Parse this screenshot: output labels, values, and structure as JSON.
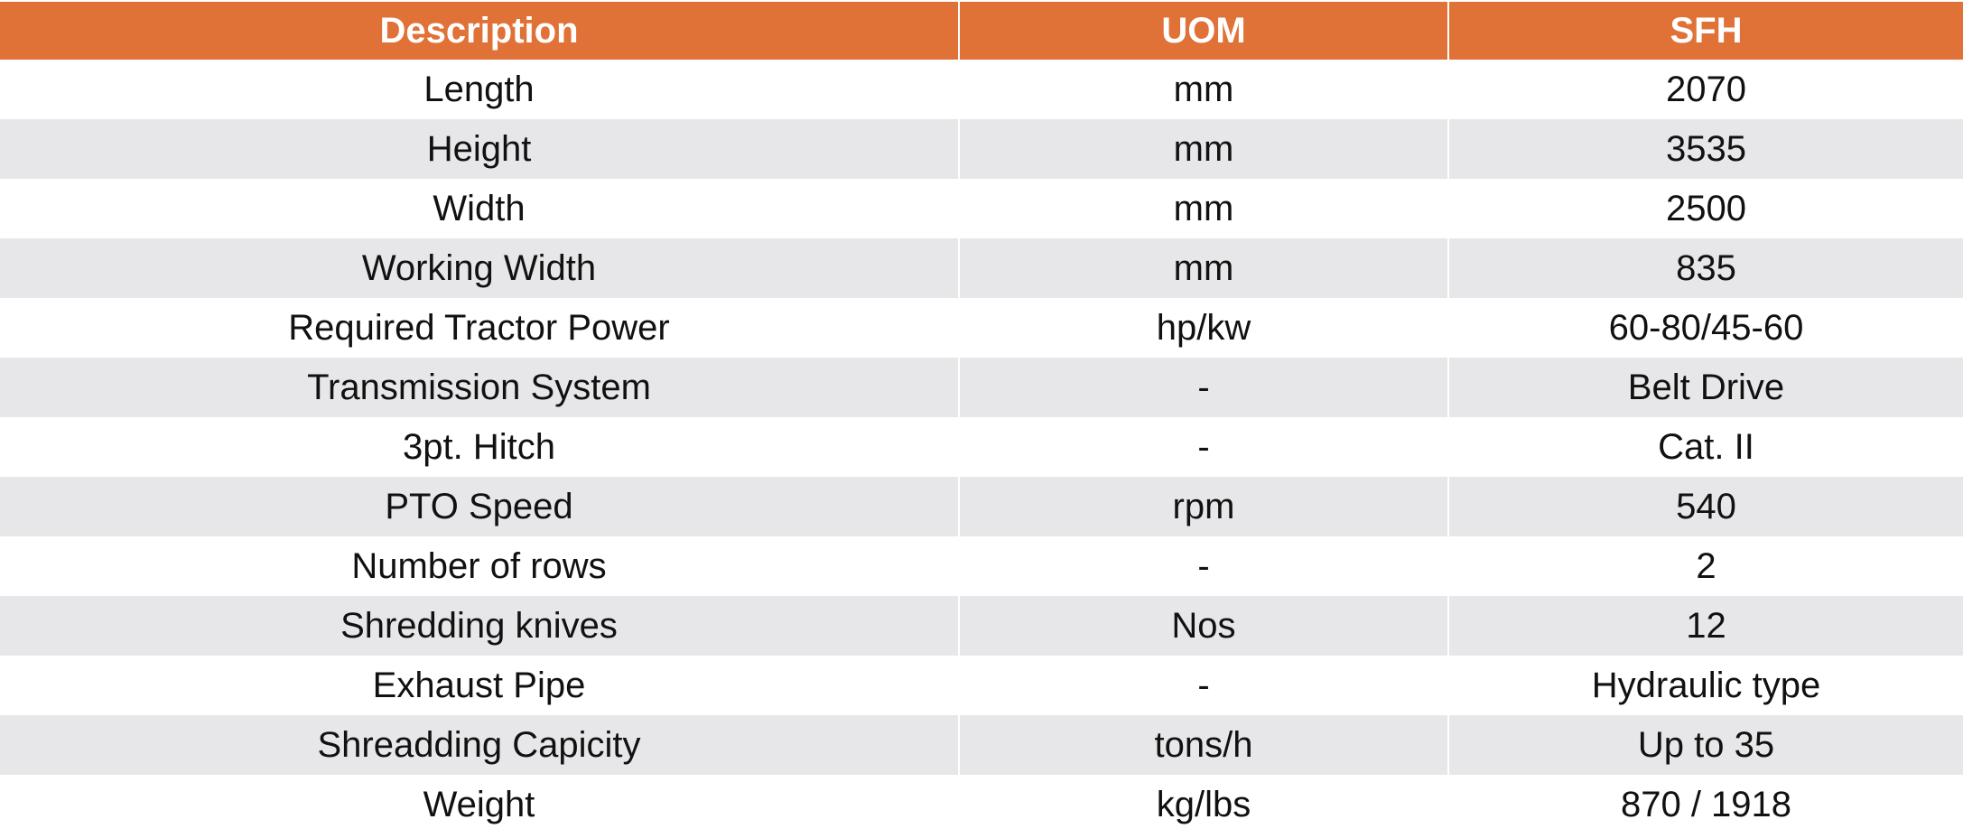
{
  "colors": {
    "header": "#E07238",
    "stripe": "#E7E7E9"
  },
  "headers": [
    "Description",
    "UOM",
    "SFH"
  ],
  "rows": [
    [
      "Length",
      "mm",
      "2070"
    ],
    [
      "Height",
      "mm",
      "3535"
    ],
    [
      "Width",
      "mm",
      "2500"
    ],
    [
      "Working Width",
      "mm",
      "835"
    ],
    [
      "Required Tractor Power",
      "hp/kw",
      "60-80/45-60"
    ],
    [
      "Transmission System",
      "-",
      "Belt Drive"
    ],
    [
      "3pt. Hitch",
      "-",
      "Cat. II"
    ],
    [
      "PTO Speed",
      "rpm",
      "540"
    ],
    [
      "Number of rows",
      "-",
      "2"
    ],
    [
      "Shredding knives",
      "Nos",
      "12"
    ],
    [
      "Exhaust Pipe",
      "-",
      "Hydraulic type"
    ],
    [
      "Shreadding Capicity",
      "tons/h",
      "Up to 35"
    ],
    [
      "Weight",
      "kg/lbs",
      "870 / 1918"
    ]
  ]
}
